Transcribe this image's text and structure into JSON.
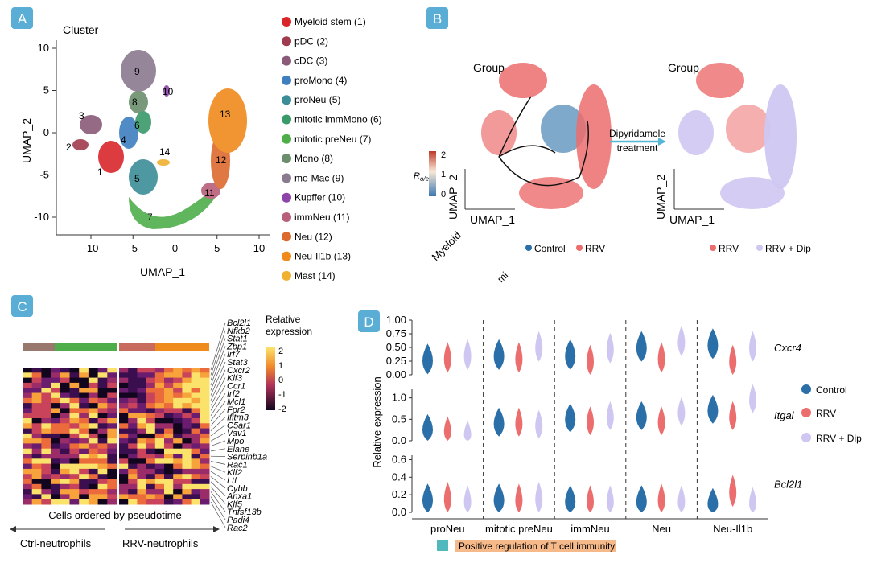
{
  "colors": {
    "panel_tag_bg": "#5aaed6",
    "control": "#2a6fa8",
    "rrv": "#ec6d6d",
    "rrv_dip": "#cfc7f2",
    "arrow_blue": "#56b6d6",
    "teal_box": "#4fb9bd",
    "orange_band": "#f6b98a"
  },
  "panel_a": {
    "tag": "A",
    "title": "Cluster",
    "clusters": [
      {
        "id": "1",
        "label": "Myeloid stem (1)",
        "color": "#d9262b"
      },
      {
        "id": "2",
        "label": "pDC (2)",
        "color": "#a03a4e"
      },
      {
        "id": "3",
        "label": "cDC (3)",
        "color": "#8a5a78"
      },
      {
        "id": "4",
        "label": "proMono (4)",
        "color": "#3f7fbf"
      },
      {
        "id": "5",
        "label": "proNeu (5)",
        "color": "#3b8d97"
      },
      {
        "id": "6",
        "label": "mitotic immMono (6)",
        "color": "#3a9a6a"
      },
      {
        "id": "7",
        "label": "mitotic preNeu (7)",
        "color": "#4fae4a"
      },
      {
        "id": "8",
        "label": "Mono (8)",
        "color": "#6b8f6d"
      },
      {
        "id": "9",
        "label": "mo-Mac (9)",
        "color": "#8a7a90"
      },
      {
        "id": "10",
        "label": "Kupffer (10)",
        "color": "#8c44a8"
      },
      {
        "id": "11",
        "label": "immNeu (11)",
        "color": "#b8607a"
      },
      {
        "id": "12",
        "label": "Neu (12)",
        "color": "#dc6a2e"
      },
      {
        "id": "13",
        "label": "Neu-Il1b (13)",
        "color": "#ef8a1c"
      },
      {
        "id": "14",
        "label": "Mast (14)",
        "color": "#f0b030"
      }
    ],
    "xlabel": "UMAP_1",
    "ylabel": "UMAP_2",
    "xticks": [
      "-10",
      "-5",
      "0",
      "5",
      "10"
    ],
    "yticks": [
      "10",
      "5",
      "0",
      "-5",
      "-10"
    ]
  },
  "panel_b": {
    "tag": "B",
    "left_title": "Group",
    "right_title": "Group",
    "colorbar_label": "R",
    "colorbar_sub": "o/e",
    "colorbar_ticks": [
      "2",
      "1",
      "0"
    ],
    "xlabel": "UMAP_1",
    "ylabel": "UMAP_2",
    "arrow_label": "Dipyridamole treatment",
    "left_legend": [
      "Control",
      "RRV"
    ],
    "right_legend": [
      "RRV",
      "RRV + Dip"
    ],
    "stray_left": "Myeloid",
    "stray_bottom": "mi"
  },
  "panel_c": {
    "tag": "C",
    "legend_title": "Relative expression",
    "legend_ticks": [
      "2",
      "1",
      "0",
      "-1",
      "-2"
    ],
    "genes": [
      "Bcl2l1",
      "Nfkb2",
      "Stat1",
      "Zbp1",
      "Irf7",
      "Stat3",
      "Cxcr2",
      "Klf3",
      "Ccr1",
      "Irf2",
      "Mcl1",
      "Fpr2",
      "Ifitm3",
      "C5ar1",
      "Vav1",
      "Mpo",
      "Elane",
      "Serpinb1a",
      "Rac1",
      "Klf2",
      "Ltf",
      "Cybb",
      "Anxa1",
      "Klf5",
      "Tnfsf13b",
      "Padi4",
      "Rac2"
    ],
    "xlabel": "Cells ordered by pseudotime",
    "left_group": "Ctrl-neutrophils",
    "right_group": "RRV-neutrophils"
  },
  "panel_d": {
    "tag": "D",
    "ylabel": "Relative expression",
    "legend": [
      "Control",
      "RRV",
      "RRV + Dip"
    ],
    "stray_text": "Positive regulation of T cell immunity",
    "chart_data": {
      "type": "violin",
      "categories": [
        "proNeu",
        "mitotic preNeu",
        "immNeu",
        "Neu",
        "Neu-Il1b"
      ],
      "groups": [
        "Control",
        "RRV",
        "RRV + Dip"
      ],
      "panels": [
        {
          "gene": "Cxcr4",
          "yticks": [
            "1.00",
            "0.75",
            "0.50",
            "0.25",
            "0.00"
          ],
          "ylim": [
            0,
            1
          ],
          "medians": [
            [
              0.22,
              0.25,
              0.3
            ],
            [
              0.3,
              0.25,
              0.45
            ],
            [
              0.3,
              0.2,
              0.42
            ],
            [
              0.45,
              0.25,
              0.55
            ],
            [
              0.5,
              0.2,
              0.45
            ]
          ]
        },
        {
          "gene": "Itgal",
          "yticks": [
            "1.0",
            "0.5",
            "0.0"
          ],
          "ylim": [
            0,
            1.2
          ],
          "medians": [
            [
              0.2,
              0.15,
              0.05
            ],
            [
              0.35,
              0.35,
              0.3
            ],
            [
              0.45,
              0.38,
              0.5
            ],
            [
              0.5,
              0.38,
              0.6
            ],
            [
              0.65,
              0.5,
              0.9
            ]
          ]
        },
        {
          "gene": "Bcl2l1",
          "yticks": [
            "0.6",
            "0.4",
            "0.2",
            "0.0"
          ],
          "ylim": [
            0,
            0.65
          ],
          "medians": [
            [
              0.1,
              0.12,
              0.08
            ],
            [
              0.1,
              0.1,
              0.12
            ],
            [
              0.08,
              0.08,
              0.08
            ],
            [
              0.08,
              0.1,
              0.08
            ],
            [
              0.05,
              0.2,
              0.06
            ]
          ]
        }
      ]
    }
  }
}
